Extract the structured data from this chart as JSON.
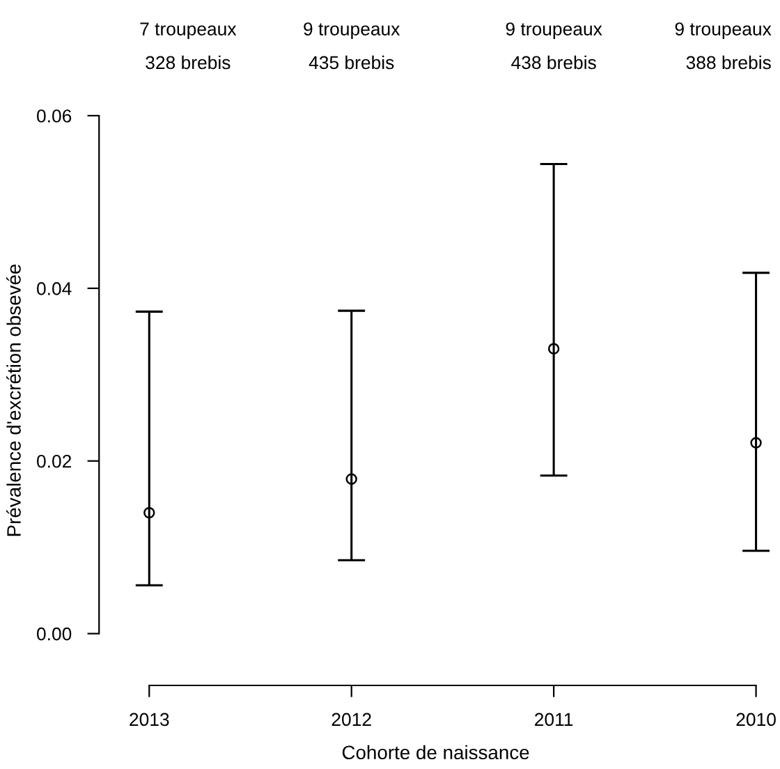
{
  "chart_data": {
    "type": "scatter",
    "categories": [
      "2013",
      "2012",
      "2011",
      "2010"
    ],
    "values": [
      0.014,
      0.0179,
      0.033,
      0.0221
    ],
    "errors": [
      [
        0.0056,
        0.0373
      ],
      [
        0.0085,
        0.0374
      ],
      [
        0.0183,
        0.0544
      ],
      [
        0.0096,
        0.0418
      ]
    ],
    "color": "#000000",
    "marker": "circle",
    "xlabel": "Cohorte de naissance",
    "ylabel": "Prévalence d'excrétion obsevée",
    "ylim": [
      -0.006,
      0.06
    ],
    "yticks": [
      {
        "value": 0,
        "label": "0.00"
      },
      {
        "value": 0.02,
        "label": "0.02"
      },
      {
        "value": 0.04,
        "label": "0.04"
      },
      {
        "value": 0.06,
        "label": "0.06"
      }
    ],
    "grid": false,
    "annotations": [
      "7 troupeaux",
      "328 brebis",
      "9 troupeaux",
      "435 brebis",
      "9 troupeaux",
      "438 brebis",
      "9 troupeaux",
      "388 brebis"
    ]
  }
}
